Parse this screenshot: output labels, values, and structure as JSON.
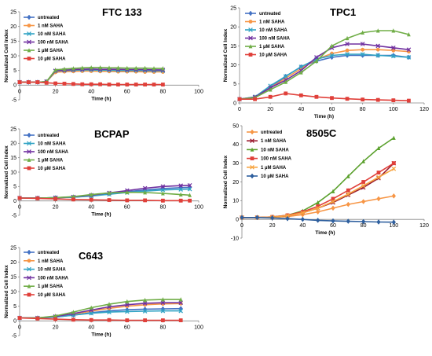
{
  "chart_data": [
    {
      "type": "line",
      "title": "FTC 133",
      "xlabel": "Time (h)",
      "ylabel": "Normalized Cell Index",
      "xlim": [
        0,
        100
      ],
      "ylim": [
        -5,
        25
      ],
      "xticks": [
        0,
        20,
        40,
        60,
        80,
        100
      ],
      "yticks": [
        -5,
        0,
        5,
        10,
        15,
        20,
        25
      ],
      "series": [
        {
          "name": "untreated",
          "color": "#4472c4",
          "marker": "diamond",
          "x": [
            0,
            5,
            10,
            15,
            20,
            25,
            30,
            35,
            40,
            45,
            50,
            55,
            60,
            65,
            70,
            75,
            80
          ],
          "y": [
            1,
            1,
            1,
            1.2,
            4.6,
            4.8,
            4.9,
            5.0,
            5.0,
            4.9,
            4.9,
            4.8,
            4.8,
            4.8,
            4.7,
            4.7,
            4.7
          ]
        },
        {
          "name": "1 nM SAHA",
          "color": "#f79646",
          "marker": "circle",
          "x": [
            0,
            5,
            10,
            15,
            20,
            25,
            30,
            35,
            40,
            45,
            50,
            55,
            60,
            65,
            70,
            75,
            80
          ],
          "y": [
            1,
            1,
            1,
            1.2,
            4.4,
            4.6,
            4.7,
            4.8,
            4.8,
            4.7,
            4.7,
            4.6,
            4.6,
            4.6,
            4.5,
            4.5,
            4.5
          ]
        },
        {
          "name": "10 nM SAHA",
          "color": "#31a3c4",
          "marker": "x",
          "x": [
            0,
            5,
            10,
            15,
            20,
            25,
            30,
            35,
            40,
            45,
            50,
            55,
            60,
            65,
            70,
            75,
            80
          ],
          "y": [
            1,
            1,
            1,
            1.2,
            4.8,
            5.0,
            5.1,
            5.2,
            5.2,
            5.1,
            5.1,
            5.0,
            5.0,
            5.0,
            5.0,
            4.9,
            4.9
          ]
        },
        {
          "name": "100 nM SAHA",
          "color": "#7030a0",
          "marker": "x",
          "x": [
            0,
            5,
            10,
            15,
            20,
            25,
            30,
            35,
            40,
            45,
            50,
            55,
            60,
            65,
            70,
            75,
            80
          ],
          "y": [
            1,
            1,
            1,
            1.2,
            4.9,
            5.1,
            5.3,
            5.4,
            5.5,
            5.4,
            5.4,
            5.4,
            5.3,
            5.3,
            5.3,
            5.2,
            5.2
          ]
        },
        {
          "name": "1 µM SAHA",
          "color": "#70ad47",
          "marker": "triangle",
          "x": [
            0,
            5,
            10,
            15,
            20,
            25,
            30,
            35,
            40,
            45,
            50,
            55,
            60,
            65,
            70,
            75,
            80
          ],
          "y": [
            1,
            1,
            1,
            1.2,
            5.2,
            5.5,
            5.7,
            5.9,
            6.0,
            6.0,
            5.9,
            5.9,
            5.8,
            5.8,
            5.8,
            5.7,
            5.7
          ]
        },
        {
          "name": "10 µM SAHA",
          "color": "#e0403a",
          "marker": "square",
          "x": [
            0,
            5,
            10,
            15,
            20,
            25,
            30,
            35,
            40,
            45,
            50,
            55,
            60,
            65,
            70,
            75,
            80
          ],
          "y": [
            1,
            1,
            1,
            0.8,
            0.6,
            0.5,
            0.4,
            0.3,
            0.3,
            0.3,
            0.2,
            0.2,
            0.2,
            0.2,
            0.2,
            0.2,
            0.2
          ]
        }
      ]
    },
    {
      "type": "line",
      "title": "TPC1",
      "xlabel": "Time (h)",
      "ylabel": "Normalized Cell Index",
      "xlim": [
        0,
        120
      ],
      "ylim": [
        0,
        25
      ],
      "xticks": [
        0,
        20,
        40,
        60,
        80,
        100,
        120
      ],
      "yticks": [
        0,
        5,
        10,
        15,
        20,
        25
      ],
      "series": [
        {
          "name": "untreated",
          "color": "#4472c4",
          "marker": "diamond",
          "x": [
            0,
            10,
            20,
            30,
            40,
            50,
            60,
            70,
            80,
            90,
            100,
            110
          ],
          "y": [
            1,
            1.5,
            4,
            7,
            9.5,
            11,
            12,
            12.5,
            12.5,
            12.5,
            12.5,
            12
          ]
        },
        {
          "name": "1 nM SAHA",
          "color": "#f79646",
          "marker": "circle",
          "x": [
            0,
            10,
            20,
            30,
            40,
            50,
            60,
            70,
            80,
            90,
            100,
            110
          ],
          "y": [
            1,
            1.5,
            4,
            6.5,
            9,
            11.5,
            13,
            13.8,
            14,
            14,
            13.8,
            13.5
          ]
        },
        {
          "name": "10 nM SAHA",
          "color": "#31a3c4",
          "marker": "x",
          "x": [
            0,
            10,
            20,
            30,
            40,
            50,
            60,
            70,
            80,
            90,
            100,
            110
          ],
          "y": [
            1,
            1.6,
            4.5,
            7,
            9.5,
            11.5,
            12.5,
            12.8,
            12.8,
            12.5,
            12.3,
            12
          ]
        },
        {
          "name": "100 nM SAHA",
          "color": "#7030a0",
          "marker": "x",
          "x": [
            0,
            10,
            20,
            30,
            40,
            50,
            60,
            70,
            80,
            90,
            100,
            110
          ],
          "y": [
            1,
            1.5,
            4,
            6,
            8.5,
            12,
            14.5,
            15.5,
            15.5,
            15,
            14.5,
            14
          ]
        },
        {
          "name": "1 µM SAHA",
          "color": "#70ad47",
          "marker": "triangle",
          "x": [
            0,
            10,
            20,
            30,
            40,
            50,
            60,
            70,
            80,
            90,
            100,
            110
          ],
          "y": [
            1,
            1.4,
            3.5,
            5.5,
            8,
            11,
            15,
            17,
            18.5,
            19,
            19,
            18
          ]
        },
        {
          "name": "10 µM SAHA",
          "color": "#e0403a",
          "marker": "square",
          "x": [
            0,
            10,
            20,
            30,
            40,
            50,
            60,
            70,
            80,
            90,
            100,
            110
          ],
          "y": [
            1,
            1,
            1.6,
            2.5,
            2.0,
            1.6,
            1.3,
            1.1,
            0.9,
            0.8,
            0.7,
            0.6
          ]
        }
      ]
    },
    {
      "type": "line",
      "title": "BCPAP",
      "xlabel": "Time (h)",
      "ylabel": "Normalized Cell Index",
      "xlim": [
        0,
        100
      ],
      "ylim": [
        -5,
        25
      ],
      "xticks": [
        0,
        20,
        40,
        60,
        80,
        100
      ],
      "yticks": [
        -5,
        0,
        5,
        10,
        15,
        20,
        25
      ],
      "series": [
        {
          "name": "untreated",
          "color": "#4472c4",
          "marker": "diamond",
          "x": [
            0,
            10,
            20,
            30,
            40,
            50,
            60,
            70,
            80,
            90,
            95
          ],
          "y": [
            1,
            1,
            1.1,
            1.3,
            1.8,
            2.5,
            3.2,
            3.8,
            4.3,
            4.6,
            4.7
          ]
        },
        {
          "name": "10 nM SAHA",
          "color": "#31a3c4",
          "marker": "x",
          "x": [
            0,
            10,
            20,
            30,
            40,
            50,
            60,
            70,
            80,
            90,
            95
          ],
          "y": [
            1,
            1,
            1.1,
            1.3,
            1.7,
            2.3,
            2.9,
            3.4,
            3.8,
            4.0,
            4.1
          ]
        },
        {
          "name": "100 nM SAHA",
          "color": "#7030a0",
          "marker": "x",
          "x": [
            0,
            10,
            20,
            30,
            40,
            50,
            60,
            70,
            80,
            90,
            95
          ],
          "y": [
            1,
            1,
            1.1,
            1.4,
            2.0,
            2.8,
            3.6,
            4.4,
            5.0,
            5.3,
            5.4
          ]
        },
        {
          "name": "1 µM SAHA",
          "color": "#70ad47",
          "marker": "triangle",
          "x": [
            0,
            10,
            20,
            30,
            40,
            50,
            60,
            70,
            80,
            90,
            95
          ],
          "y": [
            1,
            1,
            1.1,
            1.5,
            2.2,
            2.8,
            3.0,
            2.9,
            2.6,
            2.2,
            2.0
          ]
        },
        {
          "name": "10 µM SAHA",
          "color": "#e0403a",
          "marker": "square",
          "x": [
            0,
            10,
            20,
            30,
            40,
            50,
            60,
            70,
            80,
            90,
            95
          ],
          "y": [
            1,
            0.9,
            0.7,
            0.5,
            0.4,
            0.3,
            0.2,
            0.2,
            0.1,
            0.1,
            0.1
          ]
        }
      ]
    },
    {
      "type": "line",
      "title": "8505C",
      "xlabel": "Time (h)",
      "ylabel": "Normalized Cell Index",
      "xlim": [
        0,
        120
      ],
      "ylim": [
        -10,
        50
      ],
      "xticks": [
        0,
        20,
        40,
        60,
        80,
        100,
        120
      ],
      "yticks": [
        -10,
        0,
        10,
        20,
        30,
        40,
        50
      ],
      "series": [
        {
          "name": "untreated",
          "color": "#f79646",
          "marker": "diamond",
          "x": [
            0,
            10,
            20,
            30,
            40,
            50,
            60,
            70,
            80,
            90,
            100
          ],
          "y": [
            1,
            1,
            1.2,
            1.5,
            2.5,
            4,
            6,
            8,
            9.5,
            11,
            12.5
          ]
        },
        {
          "name": "1 nM SAHA",
          "color": "#9b1c2f",
          "marker": "x",
          "x": [
            0,
            10,
            20,
            30,
            40,
            50,
            60,
            70,
            80,
            90,
            100
          ],
          "y": [
            1,
            1,
            1.2,
            2,
            3.5,
            6,
            9,
            13,
            17,
            22,
            30
          ]
        },
        {
          "name": "10 nM SAHA",
          "color": "#5aa02c",
          "marker": "triangle",
          "x": [
            0,
            10,
            20,
            30,
            40,
            50,
            60,
            70,
            80,
            90,
            100
          ],
          "y": [
            1,
            1,
            1.3,
            2.2,
            4.5,
            9,
            15,
            23,
            31,
            38,
            43.5
          ]
        },
        {
          "name": "100 nM SAHA",
          "color": "#e0403a",
          "marker": "square",
          "x": [
            0,
            10,
            20,
            30,
            40,
            50,
            60,
            70,
            80,
            90,
            100
          ],
          "y": [
            1,
            1,
            1.3,
            2.2,
            4,
            7,
            11,
            15.5,
            20,
            25,
            30
          ]
        },
        {
          "name": "1 µM SAHA",
          "color": "#f7a440",
          "marker": "x",
          "x": [
            0,
            10,
            20,
            30,
            40,
            50,
            60,
            70,
            80,
            90,
            100
          ],
          "y": [
            1,
            1,
            1.2,
            2,
            3.5,
            6,
            9.5,
            13.5,
            18,
            22.5,
            27
          ]
        },
        {
          "name": "10 µM SAHA",
          "color": "#2e5f9e",
          "marker": "diamond",
          "x": [
            0,
            10,
            20,
            30,
            40,
            50,
            60,
            70,
            80,
            90,
            100
          ],
          "y": [
            1,
            1,
            0.8,
            0.4,
            0,
            -0.5,
            -0.8,
            -1,
            -1.2,
            -1.4,
            -1.5
          ]
        }
      ]
    },
    {
      "type": "line",
      "title": "C643",
      "xlabel": "Time (h)",
      "ylabel": "Normalized Cell Index",
      "xlim": [
        0,
        100
      ],
      "ylim": [
        -5,
        25
      ],
      "xticks": [
        0,
        20,
        40,
        60,
        80,
        100
      ],
      "yticks": [
        -5,
        0,
        5,
        10,
        15,
        20,
        25
      ],
      "series": [
        {
          "name": "untreated",
          "color": "#4472c4",
          "marker": "diamond",
          "x": [
            0,
            10,
            20,
            30,
            40,
            50,
            60,
            70,
            80,
            90
          ],
          "y": [
            1,
            1,
            1.3,
            2,
            2.8,
            3.4,
            3.8,
            4.0,
            4.1,
            4.2
          ]
        },
        {
          "name": "1 nM SAHA",
          "color": "#f79646",
          "marker": "circle",
          "x": [
            0,
            10,
            20,
            30,
            40,
            50,
            60,
            70,
            80,
            90
          ],
          "y": [
            1,
            1,
            1.4,
            2.3,
            3.3,
            4.3,
            5.0,
            5.5,
            5.8,
            5.9
          ]
        },
        {
          "name": "10 nM SAHA",
          "color": "#31a3c4",
          "marker": "x",
          "x": [
            0,
            10,
            20,
            30,
            40,
            50,
            60,
            70,
            80,
            90
          ],
          "y": [
            1,
            1,
            1.3,
            2.0,
            2.6,
            3.0,
            3.2,
            3.3,
            3.4,
            3.4
          ]
        },
        {
          "name": "100 nM SAHA",
          "color": "#7030a0",
          "marker": "x",
          "x": [
            0,
            10,
            20,
            30,
            40,
            50,
            60,
            70,
            80,
            90
          ],
          "y": [
            1,
            1,
            1.5,
            2.5,
            3.7,
            4.8,
            5.5,
            6.0,
            6.2,
            6.2
          ]
        },
        {
          "name": "1 µM SAHA",
          "color": "#70ad47",
          "marker": "triangle",
          "x": [
            0,
            10,
            20,
            30,
            40,
            50,
            60,
            70,
            80,
            90
          ],
          "y": [
            1,
            1,
            1.7,
            3.0,
            4.5,
            5.7,
            6.6,
            7.1,
            7.3,
            7.3
          ]
        },
        {
          "name": "10 µM SAHA",
          "color": "#e0403a",
          "marker": "square",
          "x": [
            0,
            10,
            20,
            30,
            40,
            50,
            60,
            70,
            80,
            90
          ],
          "y": [
            1,
            0.8,
            0.6,
            0.4,
            0.3,
            0.3,
            0.2,
            0.2,
            0.2,
            0.2
          ]
        }
      ]
    }
  ]
}
